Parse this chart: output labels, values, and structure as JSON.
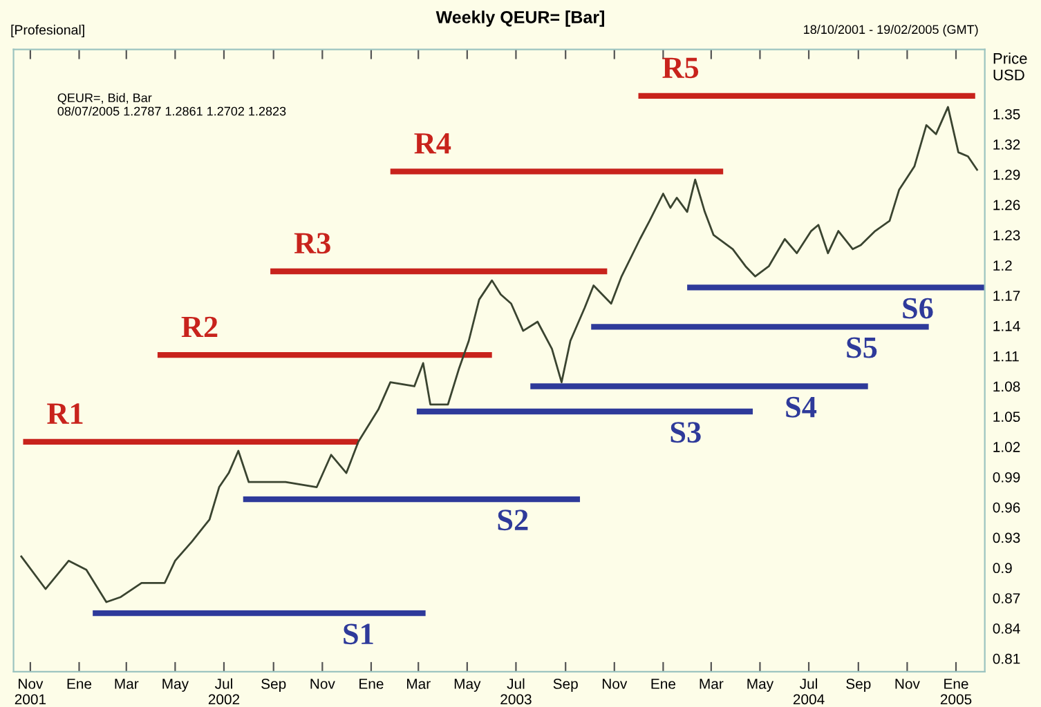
{
  "chart_data": {
    "type": "line",
    "title": "Weekly QEUR= [Bar]",
    "ylabel": "Price\nUSD",
    "annotations": [
      "[Profesional]",
      "18/10/2001 - 19/02/2005 (GMT)",
      "QEUR=, Bid, Bar\n08/07/2005 1.2787 1.2861 1.2702 1.2823"
    ],
    "series": [
      {
        "color": "#3a4430",
        "x": [
          "2001-10-20",
          "2001-11-20",
          "2001-12-19",
          "2002-01-10",
          "2002-02-04",
          "2002-02-22",
          "2002-03-20",
          "2002-04-18",
          "2002-05-01",
          "2002-05-22",
          "2002-06-13",
          "2002-06-25",
          "2002-07-07",
          "2002-07-19",
          "2002-08-01",
          "2002-09-16",
          "2002-10-25",
          "2002-11-12",
          "2002-12-01",
          "2002-12-16",
          "2003-01-10",
          "2003-01-25",
          "2003-02-24",
          "2003-03-07",
          "2003-03-16",
          "2003-04-07",
          "2003-04-21",
          "2003-05-03",
          "2003-05-16",
          "2003-06-01",
          "2003-06-12",
          "2003-06-25",
          "2003-07-10",
          "2003-07-28",
          "2003-08-15",
          "2003-08-27",
          "2003-09-07",
          "2003-09-25",
          "2003-10-06",
          "2003-10-28",
          "2003-11-10",
          "2003-12-03",
          "2003-12-15",
          "2004-01-01",
          "2004-01-10",
          "2004-01-18",
          "2004-01-31",
          "2004-02-10",
          "2004-02-22",
          "2004-03-04",
          "2004-03-28",
          "2004-04-13",
          "2004-04-25",
          "2004-05-12",
          "2004-06-01",
          "2004-06-16",
          "2004-07-04",
          "2004-07-13",
          "2004-07-25",
          "2004-08-07",
          "2004-08-25",
          "2004-09-04",
          "2004-09-22",
          "2004-10-10",
          "2004-10-22",
          "2004-11-10",
          "2004-11-25",
          "2004-12-07",
          "2004-12-22",
          "2005-01-04",
          "2005-01-16",
          "2005-01-28"
        ],
        "values": [
          0.912,
          0.879,
          0.907,
          0.898,
          0.866,
          0.871,
          0.885,
          0.885,
          0.907,
          0.926,
          0.948,
          0.98,
          0.994,
          1.016,
          0.985,
          0.985,
          0.98,
          1.012,
          0.994,
          1.025,
          1.057,
          1.084,
          1.08,
          1.103,
          1.062,
          1.062,
          1.098,
          1.125,
          1.166,
          1.185,
          1.171,
          1.162,
          1.135,
          1.144,
          1.117,
          1.084,
          1.125,
          1.158,
          1.18,
          1.162,
          1.189,
          1.226,
          1.244,
          1.271,
          1.257,
          1.267,
          1.253,
          1.285,
          1.253,
          1.23,
          1.216,
          1.199,
          1.189,
          1.199,
          1.226,
          1.212,
          1.234,
          1.24,
          1.212,
          1.234,
          1.216,
          1.22,
          1.234,
          1.244,
          1.275,
          1.298,
          1.339,
          1.33,
          1.357,
          1.312,
          1.308,
          1.294
        ]
      },
      {
        "type": "line",
        "name": "R1",
        "color": "#c8231c",
        "x": [
          "2001-10-23",
          "2002-12-16"
        ],
        "values": [
          1.025,
          1.025
        ]
      },
      {
        "type": "line",
        "name": "R2",
        "color": "#c8231c",
        "x": [
          "2002-04-09",
          "2003-06-01"
        ],
        "values": [
          1.111,
          1.111
        ]
      },
      {
        "type": "line",
        "name": "R3",
        "color": "#c8231c",
        "x": [
          "2002-08-28",
          "2003-10-23"
        ],
        "values": [
          1.194,
          1.194
        ]
      },
      {
        "type": "line",
        "name": "R4",
        "color": "#c8231c",
        "x": [
          "2003-01-25",
          "2004-03-16"
        ],
        "values": [
          1.293,
          1.293
        ]
      },
      {
        "type": "line",
        "name": "R5",
        "color": "#c8231c",
        "x": [
          "2003-12-01",
          "2005-01-25"
        ],
        "values": [
          1.368,
          1.368
        ]
      },
      {
        "type": "line",
        "name": "S1",
        "color": "#2e3a9a",
        "x": [
          "2002-01-18",
          "2003-03-10"
        ],
        "values": [
          0.855,
          0.855
        ]
      },
      {
        "type": "line",
        "name": "S2",
        "color": "#2e3a9a",
        "x": [
          "2002-07-25",
          "2003-09-19"
        ],
        "values": [
          0.968,
          0.968
        ]
      },
      {
        "type": "line",
        "name": "S3",
        "color": "#2e3a9a",
        "x": [
          "2003-02-27",
          "2004-04-22"
        ],
        "values": [
          1.055,
          1.055
        ]
      },
      {
        "type": "line",
        "name": "S4",
        "color": "#2e3a9a",
        "x": [
          "2003-07-19",
          "2004-09-13"
        ],
        "values": [
          1.08,
          1.08
        ]
      },
      {
        "type": "line",
        "name": "S5",
        "color": "#2e3a9a",
        "x": [
          "2003-10-03",
          "2004-11-28"
        ],
        "values": [
          1.139,
          1.139
        ]
      },
      {
        "type": "line",
        "name": "S6",
        "color": "#2e3a9a",
        "x": [
          "2004-01-31",
          "2005-02-06"
        ],
        "values": [
          1.178,
          1.178
        ]
      }
    ],
    "xlim": [
      "2001-10-11",
      "2005-02-06"
    ],
    "xticks": [
      {
        "value": "2001-11",
        "label": "Nov\n2001"
      },
      {
        "value": "2002-01",
        "label": "Ene"
      },
      {
        "value": "2002-03",
        "label": "Mar"
      },
      {
        "value": "2002-05",
        "label": "May"
      },
      {
        "value": "2002-07",
        "label": "Jul\n2002"
      },
      {
        "value": "2002-09",
        "label": "Sep"
      },
      {
        "value": "2002-11",
        "label": "Nov"
      },
      {
        "value": "2003-01",
        "label": "Ene"
      },
      {
        "value": "2003-03",
        "label": "Mar"
      },
      {
        "value": "2003-05",
        "label": "May"
      },
      {
        "value": "2003-07",
        "label": "Jul\n2003"
      },
      {
        "value": "2003-09",
        "label": "Sep"
      },
      {
        "value": "2003-11",
        "label": "Nov"
      },
      {
        "value": "2004-01",
        "label": "Ene"
      },
      {
        "value": "2004-03",
        "label": "Mar"
      },
      {
        "value": "2004-05",
        "label": "May"
      },
      {
        "value": "2004-07",
        "label": "Jul\n2004"
      },
      {
        "value": "2004-09",
        "label": "Sep"
      },
      {
        "value": "2004-11",
        "label": "Nov"
      },
      {
        "value": "2005-01",
        "label": "Ene\n2005"
      }
    ],
    "ylim": [
      0.797,
      1.414
    ],
    "yticks": [
      0.81,
      0.84,
      0.87,
      0.9,
      0.93,
      0.96,
      0.99,
      1.02,
      1.05,
      1.08,
      1.11,
      1.14,
      1.17,
      1.2,
      1.23,
      1.26,
      1.29,
      1.32,
      1.35
    ],
    "grid": false,
    "line_style": "solid",
    "marker": "none"
  }
}
